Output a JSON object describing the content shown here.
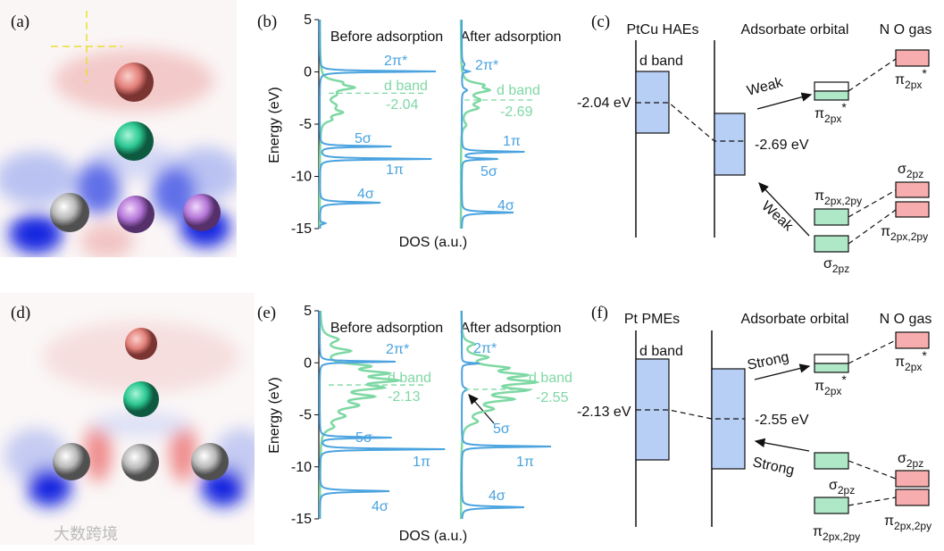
{
  "panels": {
    "a": {
      "label": "(a)"
    },
    "b": {
      "label": "(b)",
      "ylabel": "Energy (eV)",
      "xlabel": "DOS (a.u.)",
      "ylim": [
        -15,
        5
      ],
      "yticks": [
        5,
        0,
        -5,
        -10,
        -15
      ],
      "before": "Before adsorption",
      "after": "After adsorption",
      "before_labels": {
        "pi_star": "2π*",
        "d_band": "d band",
        "d_center": -2.04,
        "s5": "5σ",
        "p1": "1π",
        "s4": "4σ"
      },
      "after_labels": {
        "pi_star": "2π*",
        "d_band": "d band",
        "d_center": -2.69,
        "p1": "1π",
        "s5": "5σ",
        "s4": "4σ"
      }
    },
    "c": {
      "label": "(c)",
      "metal": "PtCu HAEs",
      "adsorbate": "Adsorbate orbital",
      "gas": "N O gas",
      "d_band": "d band",
      "d_energy": "-2.04 eV",
      "ads_energy": "-2.69 eV",
      "upper": "Weak",
      "lower": "Weak",
      "pi_ads": {
        "base": "π",
        "sub": "2px",
        "sup": "*"
      },
      "pi_gas": {
        "base": "π",
        "sub": "2px",
        "sup": "*"
      },
      "pixy_ads": {
        "base": "π",
        "sub": "2px,2py"
      },
      "sig_ads": {
        "base": "σ",
        "sub": "2pz"
      },
      "sig_gas": {
        "base": "σ",
        "sub": "2pz"
      },
      "pixy_gas": {
        "base": "π",
        "sub": "2px,2py"
      }
    },
    "d": {
      "label": "(d)"
    },
    "e": {
      "label": "(e)",
      "ylabel": "Energy (eV)",
      "xlabel": "DOS (a.u.)",
      "ylim": [
        -15,
        5
      ],
      "yticks": [
        5,
        0,
        -5,
        -10,
        -15
      ],
      "before": "Before adsorption",
      "after": "After adsorption",
      "before_labels": {
        "pi_star": "2π*",
        "d_band": "d band",
        "d_center": -2.13,
        "s5": "5σ",
        "p1": "1π",
        "s4": "4σ"
      },
      "after_labels": {
        "pi_star": "2π*",
        "d_band": "d band",
        "d_center": -2.55,
        "s5": "5σ",
        "p1": "1π",
        "s4": "4σ"
      }
    },
    "f": {
      "label": "(f)",
      "metal": "Pt PMEs",
      "adsorbate": "Adsorbate orbital",
      "gas": "N O gas",
      "d_band": "d band",
      "d_energy": "-2.13 eV",
      "ads_energy": "-2.55 eV",
      "upper": "Strong",
      "lower": "Strong",
      "pi_ads": {
        "base": "π",
        "sub": "2px",
        "sup": "*"
      },
      "pi_gas": {
        "base": "π",
        "sub": "2px",
        "sup": "*"
      },
      "sig_ads": {
        "base": "σ",
        "sub": "2pz"
      },
      "pixy_ads": {
        "base": "π",
        "sub": "2px,2py"
      },
      "sig_gas": {
        "base": "σ",
        "sub": "2pz"
      },
      "pixy_gas": {
        "base": "π",
        "sub": "2px,2py"
      }
    }
  },
  "watermark": "大数跨境"
}
